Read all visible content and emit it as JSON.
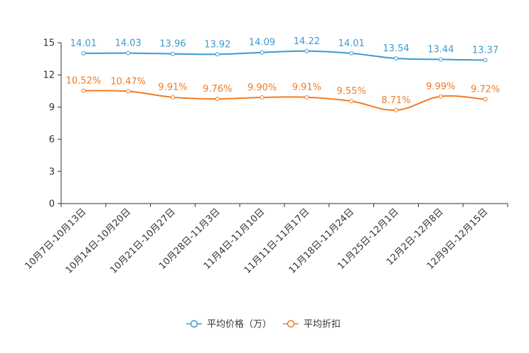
{
  "chart_data": {
    "type": "line",
    "title": "",
    "xlabel": "",
    "ylabel": "",
    "ylim": [
      0,
      15
    ],
    "yticks": [
      0,
      3,
      6,
      9,
      12,
      15
    ],
    "grid": false,
    "legend_position": "bottom-center",
    "categories": [
      "10月7日-10月13日",
      "10月14日-10月20日",
      "10月21日-10月27日",
      "10月28日-11月3日",
      "11月4日-11月10日",
      "11月11日-11月17日",
      "11月18日-11月24日",
      "11月25日-12月1日",
      "12月2日-12月8日",
      "12月9日-12月15日"
    ],
    "series": [
      {
        "name": "平均价格（万）",
        "color": "#3d9bd0",
        "values": [
          14.01,
          14.03,
          13.96,
          13.92,
          14.09,
          14.22,
          14.01,
          13.54,
          13.44,
          13.37
        ],
        "labels": [
          "14.01",
          "14.03",
          "13.96",
          "13.92",
          "14.09",
          "14.22",
          "14.01",
          "13.54",
          "13.44",
          "13.37"
        ]
      },
      {
        "name": "平均折扣",
        "color": "#f47b20",
        "values": [
          10.52,
          10.47,
          9.91,
          9.76,
          9.9,
          9.91,
          9.55,
          8.71,
          9.99,
          9.72
        ],
        "labels": [
          "10.52%",
          "10.47%",
          "9.91%",
          "9.76%",
          "9.90%",
          "9.91%",
          "9.55%",
          "8.71%",
          "9.99%",
          "9.72%"
        ]
      }
    ]
  }
}
